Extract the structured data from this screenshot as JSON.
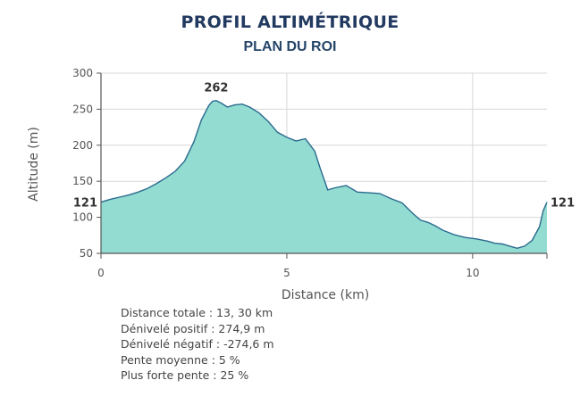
{
  "chart_data": {
    "type": "area",
    "title": "PROFIL ALTIMÉTRIQUE",
    "subtitle": "PLAN DU ROI",
    "xlabel": "Distance (km)",
    "ylabel": "Altitude (m)",
    "xlim": [
      0,
      12
    ],
    "ylim": [
      50,
      300
    ],
    "x_ticks": [
      0,
      5,
      10
    ],
    "y_ticks": [
      50,
      100,
      150,
      200,
      250,
      300
    ],
    "grid": true,
    "fill_color": "#93dcd1",
    "line_color": "#2a6a8e",
    "series": [
      {
        "x": [
          0,
          0.25,
          0.5,
          0.75,
          1,
          1.25,
          1.5,
          1.75,
          2,
          2.25,
          2.5,
          2.7,
          2.9,
          3.0,
          3.1,
          3.25,
          3.4,
          3.6,
          3.8,
          4.0,
          4.25,
          4.5,
          4.75,
          5.0,
          5.25,
          5.5,
          5.75,
          5.9,
          6.1,
          6.3,
          6.6,
          6.9,
          7.2,
          7.5,
          7.8,
          8.1,
          8.4,
          8.6,
          8.8,
          9.0,
          9.2,
          9.5,
          9.8,
          10.1,
          10.4,
          10.6,
          10.8,
          11.0,
          11.2,
          11.4,
          11.6,
          11.8,
          11.9,
          12.0
        ],
        "y": [
          121,
          125,
          128,
          131,
          135,
          140,
          147,
          155,
          164,
          178,
          205,
          235,
          255,
          261,
          262,
          258,
          253,
          256,
          257,
          253,
          245,
          233,
          218,
          211,
          206,
          209,
          192,
          168,
          138,
          141,
          144,
          135,
          134,
          133,
          126,
          120,
          105,
          96,
          93,
          88,
          82,
          76,
          72,
          70,
          67,
          64,
          63,
          60,
          57,
          60,
          68,
          87,
          109,
          121
        ]
      }
    ],
    "annotations": [
      {
        "x": 3.1,
        "y": 262,
        "text": "262",
        "position": "above"
      },
      {
        "x": 0,
        "y": 121,
        "text": "121",
        "position": "left"
      },
      {
        "x": 12,
        "y": 121,
        "text": "121",
        "position": "right"
      }
    ]
  },
  "stats": [
    "Distance totale : 13, 30 km",
    "Dénivelé positif : 274,9 m",
    "Dénivelé négatif : -274,6 m",
    "Pente moyenne : 5 %",
    "Plus forte pente : 25 %"
  ]
}
